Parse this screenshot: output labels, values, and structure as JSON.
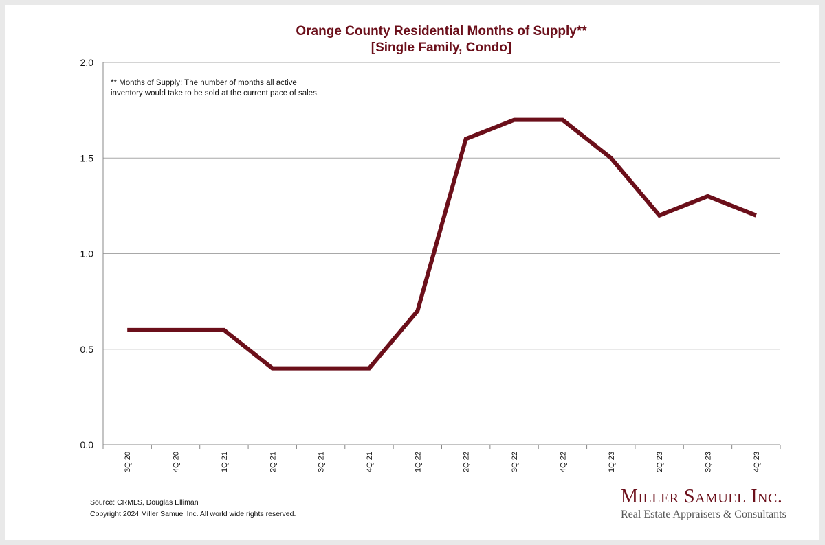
{
  "chart_data": {
    "type": "line",
    "title": "Orange County Residential Months of Supply**",
    "subtitle": "[Single Family, Condo]",
    "note": [
      "** Months of Supply: The number of months all active",
      "inventory would take to be sold at the current pace of sales."
    ],
    "categories": [
      "3Q 20",
      "4Q 20",
      "1Q 21",
      "2Q 21",
      "3Q 21",
      "4Q 21",
      "1Q 22",
      "2Q 22",
      "3Q 22",
      "4Q 22",
      "1Q 23",
      "2Q 23",
      "3Q 23",
      "4Q 23"
    ],
    "series": [
      {
        "name": "Months of Supply",
        "values": [
          0.6,
          0.6,
          0.6,
          0.4,
          0.4,
          0.4,
          0.7,
          1.6,
          1.7,
          1.7,
          1.5,
          1.2,
          1.3,
          1.2
        ]
      }
    ],
    "ylim": [
      0,
      2.0
    ],
    "yticks": [
      "0.0",
      "0.5",
      "1.0",
      "1.5",
      "2.0"
    ],
    "ytick_values": [
      0,
      0.5,
      1.0,
      1.5,
      2.0
    ],
    "xlabel": "",
    "ylabel": "",
    "grid": true,
    "line_color": "#6b0f1a"
  },
  "footer": {
    "source": "Source: CRMLS, Douglas Elliman",
    "copyright": "Copyright 2024 Miller Samuel Inc.  All world wide rights reserved."
  },
  "logo": {
    "name": "Miller Samuel Inc.",
    "tagline": "Real Estate Appraisers & Consultants"
  }
}
